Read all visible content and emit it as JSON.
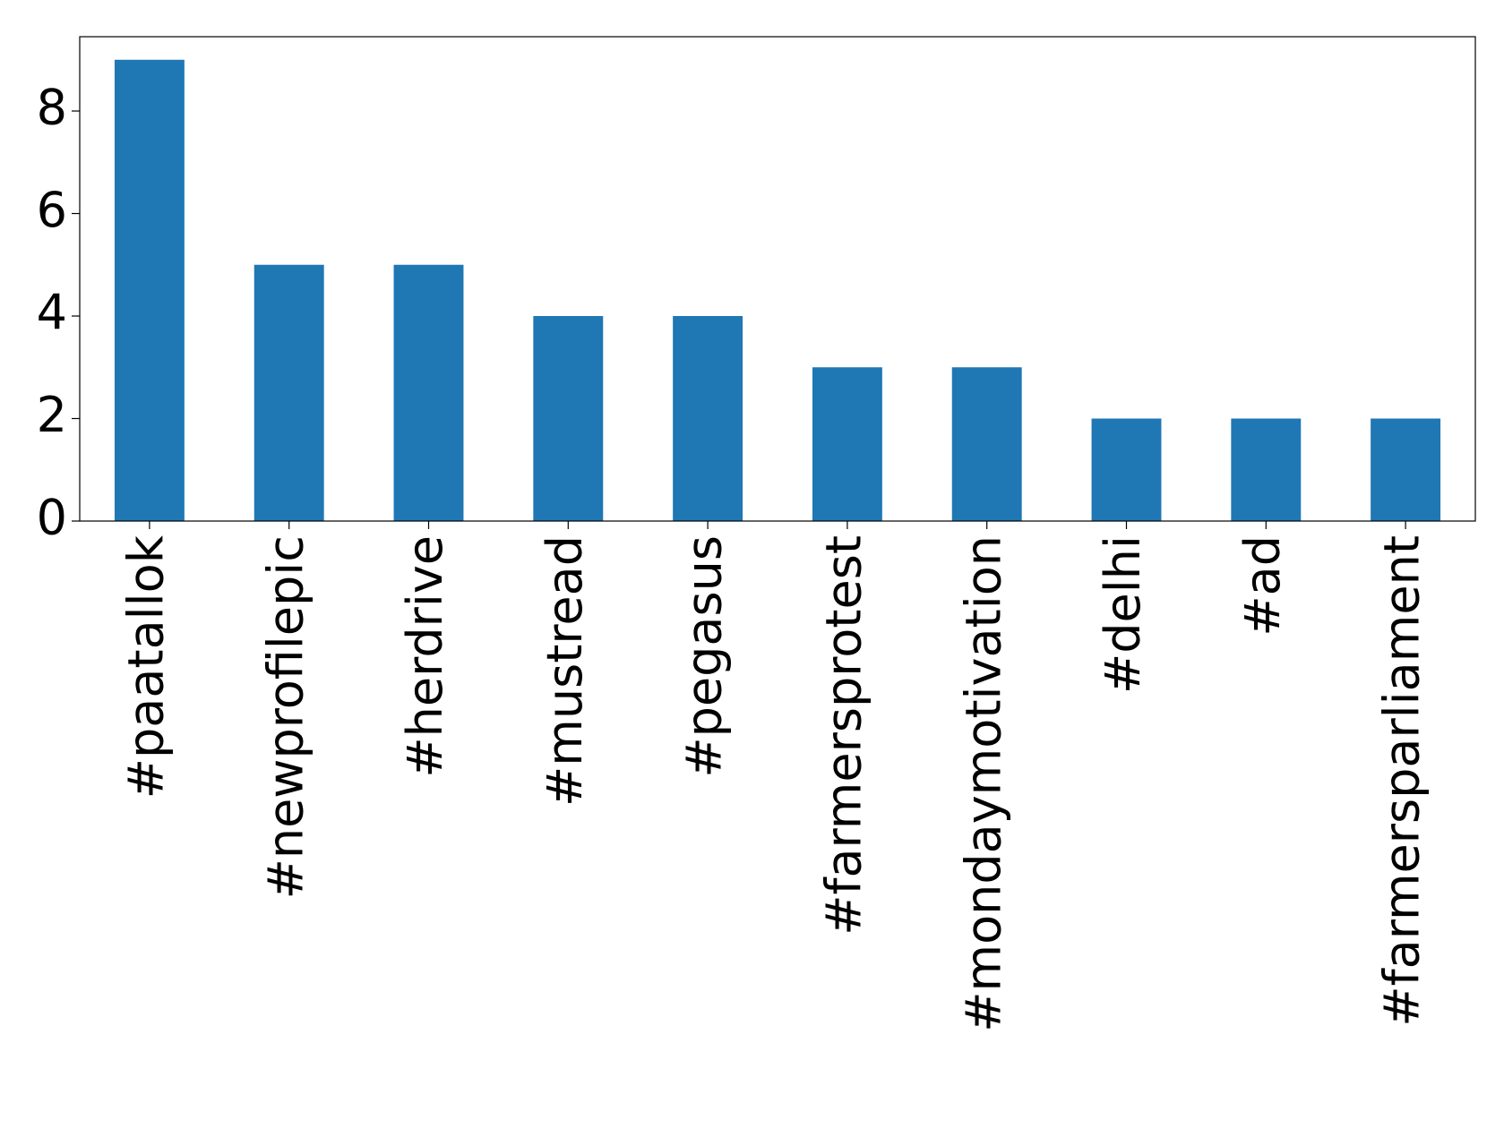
{
  "chart_data": {
    "type": "bar",
    "categories": [
      "#paatallok",
      "#newprofilepic",
      "#herdrive",
      "#mustread",
      "#pegasus",
      "#farmersprotest",
      "#mondaymotivation",
      "#delhi",
      "#ad",
      "#farmersparliament"
    ],
    "values": [
      9,
      5,
      5,
      4,
      4,
      3,
      3,
      2,
      2,
      2
    ],
    "color": "#1f77b4",
    "ylim": [
      0,
      9.45
    ],
    "yticks": [
      0,
      2,
      4,
      6,
      8
    ],
    "grid": false
  }
}
